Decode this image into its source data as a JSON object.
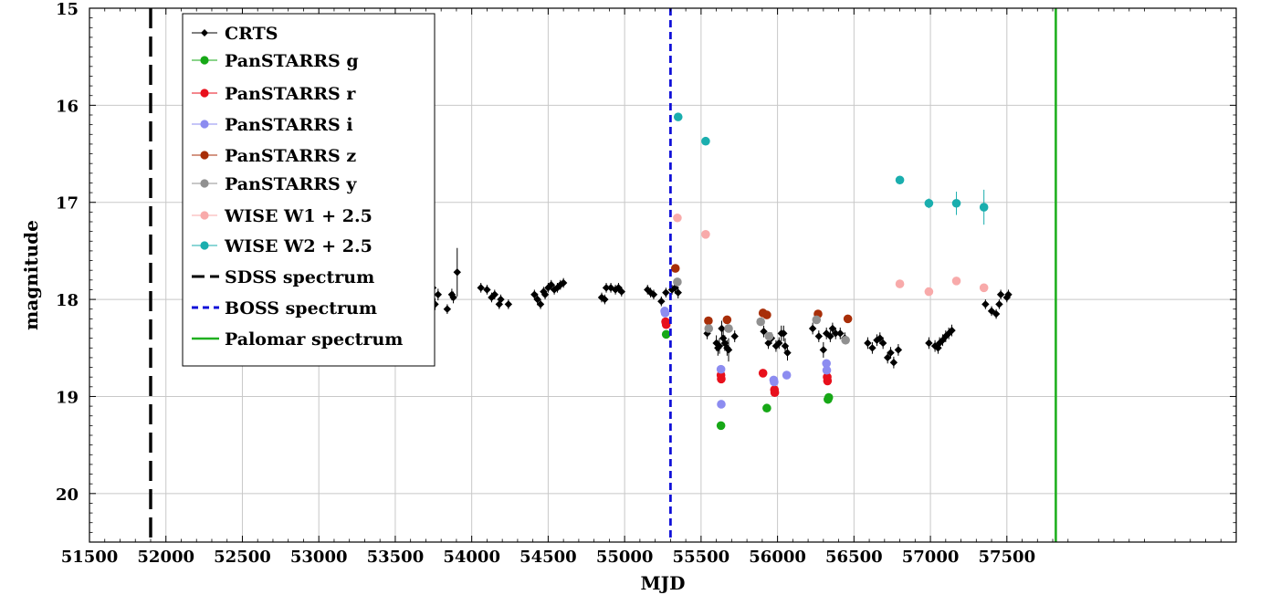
{
  "chart_data": {
    "type": "scatter",
    "title": "",
    "xlabel": "MJD",
    "ylabel": "magnitude",
    "xlim": [
      51500,
      59000
    ],
    "ylim": [
      15,
      20.5
    ],
    "y_inverted": true,
    "grid": true,
    "legend_position": "upper-left",
    "xticks": [
      51500,
      52000,
      52500,
      53000,
      53500,
      54000,
      54500,
      55000,
      55500,
      56000,
      56500,
      57000,
      57500
    ],
    "xtick_labels": [
      "51500",
      "52000",
      "52500",
      "53000",
      "53500",
      "54000",
      "54500",
      "55000",
      "55500",
      "56000",
      "56500",
      "57000",
      "57500"
    ],
    "yticks": [
      15,
      16,
      17,
      18,
      19,
      20
    ],
    "ytick_labels": [
      "15",
      "16",
      "17",
      "18",
      "19",
      "20"
    ],
    "series": [
      {
        "name": "CRTS",
        "color": "#000000",
        "marker": "diamond",
        "points": [
          [
            53460,
            18.25,
            0.05
          ],
          [
            53480,
            18.35,
            0.08
          ],
          [
            53530,
            18.22,
            0.05
          ],
          [
            53710,
            18.15,
            0.05
          ],
          [
            53730,
            17.9,
            0.06
          ],
          [
            53745,
            17.88,
            0.06
          ],
          [
            53760,
            18.05,
            0.06
          ],
          [
            53780,
            17.95,
            0.06
          ],
          [
            53840,
            18.1,
            0.05
          ],
          [
            53870,
            17.95,
            0.06
          ],
          [
            53880,
            17.98,
            0.06
          ],
          [
            53905,
            17.72,
            0.25
          ],
          [
            54060,
            17.88,
            0.05
          ],
          [
            54100,
            17.9,
            0.05
          ],
          [
            54130,
            17.98,
            0.05
          ],
          [
            54150,
            17.95,
            0.05
          ],
          [
            54180,
            18.05,
            0.05
          ],
          [
            54190,
            18.0,
            0.05
          ],
          [
            54240,
            18.05,
            0.05
          ],
          [
            54410,
            17.95,
            0.05
          ],
          [
            54430,
            18.0,
            0.06
          ],
          [
            54450,
            18.05,
            0.05
          ],
          [
            54470,
            17.92,
            0.05
          ],
          [
            54480,
            17.95,
            0.05
          ],
          [
            54500,
            17.88,
            0.05
          ],
          [
            54520,
            17.85,
            0.05
          ],
          [
            54540,
            17.9,
            0.05
          ],
          [
            54560,
            17.88,
            0.05
          ],
          [
            54580,
            17.85,
            0.05
          ],
          [
            54600,
            17.83,
            0.05
          ],
          [
            54850,
            17.98,
            0.05
          ],
          [
            54870,
            18.0,
            0.05
          ],
          [
            54880,
            17.88,
            0.05
          ],
          [
            54910,
            17.88,
            0.05
          ],
          [
            54940,
            17.9,
            0.05
          ],
          [
            54960,
            17.88,
            0.05
          ],
          [
            54980,
            17.92,
            0.05
          ],
          [
            55150,
            17.9,
            0.05
          ],
          [
            55170,
            17.93,
            0.05
          ],
          [
            55190,
            17.95,
            0.05
          ],
          [
            55240,
            18.02,
            0.05
          ],
          [
            55270,
            17.93,
            0.05
          ],
          [
            55310,
            17.9,
            0.05
          ],
          [
            55330,
            17.88,
            0.06
          ],
          [
            55350,
            17.93,
            0.06
          ],
          [
            55540,
            18.35,
            0.06
          ],
          [
            55600,
            18.45,
            0.08
          ],
          [
            55610,
            18.5,
            0.08
          ],
          [
            55620,
            18.48,
            0.08
          ],
          [
            55635,
            18.3,
            0.08
          ],
          [
            55645,
            18.4,
            0.08
          ],
          [
            55655,
            18.45,
            0.08
          ],
          [
            55670,
            18.5,
            0.08
          ],
          [
            55680,
            18.52,
            0.12
          ],
          [
            55720,
            18.38,
            0.06
          ],
          [
            55910,
            18.33,
            0.06
          ],
          [
            55940,
            18.45,
            0.06
          ],
          [
            55960,
            18.4,
            0.06
          ],
          [
            55990,
            18.48,
            0.06
          ],
          [
            56010,
            18.45,
            0.06
          ],
          [
            56025,
            18.35,
            0.08
          ],
          [
            56040,
            18.35,
            0.08
          ],
          [
            56050,
            18.48,
            0.08
          ],
          [
            56065,
            18.55,
            0.08
          ],
          [
            56230,
            18.3,
            0.06
          ],
          [
            56270,
            18.38,
            0.06
          ],
          [
            56300,
            18.52,
            0.08
          ],
          [
            56320,
            18.35,
            0.06
          ],
          [
            56345,
            18.38,
            0.06
          ],
          [
            56360,
            18.3,
            0.06
          ],
          [
            56380,
            18.35,
            0.06
          ],
          [
            56410,
            18.35,
            0.06
          ],
          [
            56440,
            18.4,
            0.06
          ],
          [
            56590,
            18.45,
            0.06
          ],
          [
            56620,
            18.5,
            0.06
          ],
          [
            56650,
            18.42,
            0.06
          ],
          [
            56670,
            18.4,
            0.06
          ],
          [
            56690,
            18.45,
            0.06
          ],
          [
            56720,
            18.6,
            0.06
          ],
          [
            56740,
            18.55,
            0.06
          ],
          [
            56760,
            18.65,
            0.06
          ],
          [
            56790,
            18.52,
            0.06
          ],
          [
            56990,
            18.45,
            0.06
          ],
          [
            57030,
            18.48,
            0.06
          ],
          [
            57050,
            18.5,
            0.06
          ],
          [
            57060,
            18.45,
            0.06
          ],
          [
            57080,
            18.42,
            0.06
          ],
          [
            57100,
            18.38,
            0.06
          ],
          [
            57120,
            18.35,
            0.06
          ],
          [
            57140,
            18.32,
            0.06
          ],
          [
            57360,
            18.05,
            0.05
          ],
          [
            57400,
            18.12,
            0.05
          ],
          [
            57430,
            18.15,
            0.05
          ],
          [
            57450,
            18.05,
            0.05
          ],
          [
            57460,
            17.95,
            0.05
          ],
          [
            57500,
            17.98,
            0.05
          ],
          [
            57510,
            17.95,
            0.05
          ]
        ]
      },
      {
        "name": "PanSTARRS g",
        "color": "#17a817",
        "marker": "circle",
        "points": [
          [
            55272,
            18.36,
            0.02
          ],
          [
            55630,
            19.3,
            0.02
          ],
          [
            55930,
            19.12,
            0.02
          ],
          [
            56330,
            19.03,
            0.02
          ],
          [
            56335,
            19.01,
            0.02
          ]
        ]
      },
      {
        "name": "PanSTARRS r",
        "color": "#e8101c",
        "marker": "circle",
        "points": [
          [
            55268,
            18.23,
            0.02
          ],
          [
            55272,
            18.26,
            0.02
          ],
          [
            55630,
            18.78,
            0.02
          ],
          [
            55632,
            18.82,
            0.02
          ],
          [
            55905,
            18.76,
            0.02
          ],
          [
            55980,
            18.93,
            0.02
          ],
          [
            55982,
            18.96,
            0.02
          ],
          [
            56325,
            18.8,
            0.02
          ],
          [
            56327,
            18.84,
            0.02
          ]
        ]
      },
      {
        "name": "PanSTARRS i",
        "color": "#8c8cf0",
        "marker": "circle",
        "points": [
          [
            55262,
            18.12,
            0.02
          ],
          [
            55265,
            18.14,
            0.02
          ],
          [
            55630,
            18.72,
            0.02
          ],
          [
            55632,
            19.08,
            0.02
          ],
          [
            55975,
            18.83,
            0.02
          ],
          [
            55978,
            18.85,
            0.02
          ],
          [
            56060,
            18.78,
            0.02
          ],
          [
            56320,
            18.66,
            0.02
          ],
          [
            56322,
            18.73,
            0.02
          ]
        ]
      },
      {
        "name": "PanSTARRS z",
        "color": "#a82e08",
        "marker": "circle",
        "points": [
          [
            55332,
            17.68,
            0.02
          ],
          [
            55548,
            18.22,
            0.02
          ],
          [
            55670,
            18.21,
            0.02
          ],
          [
            55905,
            18.14,
            0.02
          ],
          [
            55930,
            18.16,
            0.02
          ],
          [
            56265,
            18.15,
            0.02
          ],
          [
            56460,
            18.2,
            0.02
          ]
        ]
      },
      {
        "name": "PanSTARRS y",
        "color": "#909090",
        "marker": "circle",
        "points": [
          [
            55345,
            17.82,
            0.02
          ],
          [
            55550,
            18.3,
            0.02
          ],
          [
            55680,
            18.3,
            0.02
          ],
          [
            55890,
            18.23,
            0.02
          ],
          [
            55945,
            18.38,
            0.02
          ],
          [
            56255,
            18.21,
            0.02
          ],
          [
            56445,
            18.42,
            0.02
          ]
        ]
      },
      {
        "name": "WISE W1 + 2.5",
        "color": "#f8aaaa",
        "marker": "circle",
        "points": [
          [
            55345,
            17.16,
            0.02
          ],
          [
            55530,
            17.33,
            0.02
          ],
          [
            56800,
            17.84,
            0.03
          ],
          [
            56990,
            17.92,
            0.03
          ],
          [
            57170,
            17.81,
            0.03
          ],
          [
            57350,
            17.88,
            0.03
          ]
        ]
      },
      {
        "name": "WISE W2 + 2.5",
        "color": "#1aaeae",
        "marker": "circle",
        "points": [
          [
            55350,
            16.12,
            0.02
          ],
          [
            55530,
            16.37,
            0.02
          ],
          [
            56800,
            16.77,
            0.03
          ],
          [
            56990,
            17.01,
            0.05
          ],
          [
            57170,
            17.01,
            0.12
          ],
          [
            57350,
            17.05,
            0.18
          ]
        ]
      }
    ],
    "vlines": [
      {
        "name": "SDSS spectrum",
        "x": 51900,
        "color": "#000000",
        "style": "longdash"
      },
      {
        "name": "BOSS spectrum",
        "x": 55300,
        "color": "#1010d8",
        "style": "dash"
      },
      {
        "name": "Palomar spectrum",
        "x": 57820,
        "color": "#20b020",
        "style": "solid"
      }
    ]
  }
}
